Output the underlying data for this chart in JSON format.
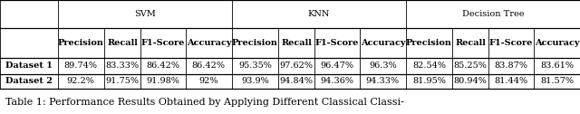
{
  "title": "Table 1: Performance Results Obtained by Applying Different Classical Classi-",
  "col_headers_top": [
    "SVM",
    "KNN",
    "Decision Tree"
  ],
  "col_headers_mid": [
    "Precision",
    "Recall",
    "F1-Score",
    "Accuracy",
    "Precision",
    "Recall",
    "F1-Score",
    "Accuracy",
    "Precision",
    "Recall",
    "F1-Score",
    "Accuracy"
  ],
  "rows": [
    [
      "Dataset 1",
      "89.74%",
      "83.33%",
      "86.42%",
      "86.42%",
      "95.35%",
      "97.62%",
      "96.47%",
      "96.3%",
      "82.54%",
      "85.25%",
      "83.87%",
      "83.61%"
    ],
    [
      "Dataset 2",
      "92.2%",
      "91.75%",
      "91.98%",
      "92%",
      "93.9%",
      "94.84%",
      "94.36%",
      "94.33%",
      "81.95%",
      "80.94%",
      "81.44%",
      "81.57%"
    ]
  ],
  "bg_color": "#ffffff",
  "text_color": "#000000",
  "header_bg": "#ffffff",
  "font_size": 7.0,
  "header_font_size": 7.0,
  "title_font_size": 8.0,
  "fig_width": 6.4,
  "fig_height": 1.26,
  "dpi": 100
}
